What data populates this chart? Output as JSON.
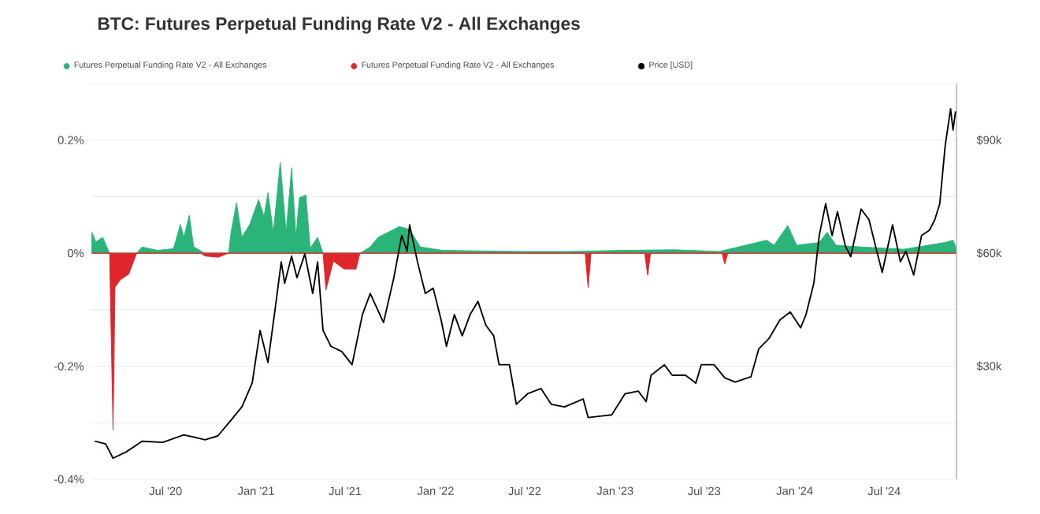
{
  "chart_data": {
    "type": "area",
    "title": "BTC: Futures Perpetual Funding Rate V2 - All Exchanges",
    "xlim": [
      "2020-02-01",
      "2024-11-25"
    ],
    "xticks": [
      {
        "value": "2020-07-01",
        "label": "Jul '20"
      },
      {
        "value": "2021-01-01",
        "label": "Jan '21"
      },
      {
        "value": "2021-07-01",
        "label": "Jul '21"
      },
      {
        "value": "2022-01-01",
        "label": "Jan '22"
      },
      {
        "value": "2022-07-01",
        "label": "Jul '22"
      },
      {
        "value": "2023-01-01",
        "label": "Jan '23"
      },
      {
        "value": "2023-07-01",
        "label": "Jul '23"
      },
      {
        "value": "2024-01-01",
        "label": "Jan '24"
      },
      {
        "value": "2024-07-01",
        "label": "Jul '24"
      }
    ],
    "ylim": [
      -0.4,
      0.3
    ],
    "yticks": [
      {
        "value": -0.4,
        "label": "-0.4%"
      },
      {
        "value": -0.3,
        "label": null
      },
      {
        "value": -0.2,
        "label": "-0.2%"
      },
      {
        "value": -0.1,
        "label": null
      },
      {
        "value": 0,
        "label": "0%"
      },
      {
        "value": 0.1,
        "label": null
      },
      {
        "value": 0.2,
        "label": "0.2%"
      },
      {
        "value": 0.3,
        "label": null
      }
    ],
    "y2lim": [
      0,
      105000
    ],
    "y2ticks": [
      {
        "value": 30000,
        "label": "$30k"
      },
      {
        "value": 60000,
        "label": "$60k"
      },
      {
        "value": 90000,
        "label": "$90k"
      }
    ],
    "grid": "y",
    "legend": "top",
    "series": [
      {
        "name": "Futures Perpetual Funding Rate V2 - All Exchanges",
        "color": "#2bb47a",
        "x": [
          "2020-02-02",
          "2020-02-10",
          "2020-02-24",
          "2020-03-09",
          "2020-03-16",
          "2020-04-17",
          "2020-05-03",
          "2020-05-14",
          "2020-06-15",
          "2020-07-17",
          "2020-07-31",
          "2020-08-07",
          "2020-08-18",
          "2020-08-27",
          "2020-09-19",
          "2020-10-16",
          "2020-11-06",
          "2020-11-11",
          "2020-11-22",
          "2020-12-03",
          "2020-12-19",
          "2021-01-06",
          "2021-01-17",
          "2021-01-25",
          "2021-02-05",
          "2021-02-19",
          "2021-03-03",
          "2021-03-14",
          "2021-03-23",
          "2021-03-30",
          "2021-04-12",
          "2021-04-21",
          "2021-05-06",
          "2021-05-17",
          "2021-07-31",
          "2021-08-21",
          "2021-09-06",
          "2021-10-19",
          "2021-11-09",
          "2021-12-01",
          "2022-01-15",
          "2022-04-01",
          "2022-07-01",
          "2022-10-01",
          "2023-01-15",
          "2023-05-01",
          "2023-08-01",
          "2023-11-05",
          "2023-11-20",
          "2023-12-18",
          "2024-01-05",
          "2024-02-20",
          "2024-03-07",
          "2024-03-25",
          "2024-05-15",
          "2024-08-10",
          "2024-11-02",
          "2024-11-18",
          "2024-11-24"
        ],
        "values": [
          0.037,
          0.02,
          0.028,
          0,
          0,
          0,
          0,
          0.011,
          0.005,
          0.008,
          0.051,
          0.028,
          0.067,
          0.011,
          0,
          0,
          0,
          0.037,
          0.089,
          0.028,
          0.051,
          0.095,
          0.065,
          0.107,
          0.037,
          0.161,
          0.037,
          0.151,
          0.028,
          0.098,
          0.103,
          0.009,
          0.028,
          0,
          0,
          0.011,
          0.028,
          0.047,
          0.042,
          0.011,
          0.005,
          0.004,
          0.003,
          0.003,
          0.005,
          0.006,
          0.003,
          0.023,
          0.014,
          0.049,
          0.014,
          0.019,
          0.037,
          0.014,
          0.011,
          0.007,
          0.019,
          0.023,
          0.01
        ]
      },
      {
        "name": "Futures Perpetual Funding Rate V2 - All Exchanges",
        "color": "#e0262b",
        "x": [
          "2020-02-02",
          "2020-03-09",
          "2020-03-16",
          "2020-03-20",
          "2020-03-31",
          "2020-04-17",
          "2020-05-03",
          "2020-09-10",
          "2020-09-19",
          "2020-10-16",
          "2020-11-06",
          "2021-05-17",
          "2021-05-23",
          "2021-06-07",
          "2021-06-29",
          "2021-07-23",
          "2021-07-31",
          "2022-11-01",
          "2022-11-07",
          "2022-11-13",
          "2023-03-02",
          "2023-03-08",
          "2023-03-14",
          "2023-08-06",
          "2023-08-12",
          "2023-08-18",
          "2024-11-24"
        ],
        "values": [
          0,
          0,
          -0.313,
          -0.06,
          -0.047,
          -0.037,
          0,
          0,
          -0.005,
          -0.007,
          0,
          0,
          -0.065,
          -0.014,
          -0.028,
          -0.028,
          0,
          0,
          -0.061,
          0,
          0,
          -0.039,
          0,
          0,
          -0.019,
          0,
          0
        ]
      },
      {
        "name": "Price [USD]",
        "color": "#000000",
        "type": "line",
        "axis": "y2",
        "x": [
          "2020-02-08",
          "2020-03-01",
          "2020-03-16",
          "2020-04-12",
          "2020-05-14",
          "2020-06-25",
          "2020-08-07",
          "2020-09-19",
          "2020-10-15",
          "2020-11-11",
          "2020-12-03",
          "2020-12-24",
          "2021-01-09",
          "2021-01-25",
          "2021-02-10",
          "2021-02-21",
          "2021-02-28",
          "2021-03-14",
          "2021-03-25",
          "2021-04-10",
          "2021-04-26",
          "2021-05-06",
          "2021-05-17",
          "2021-06-02",
          "2021-06-24",
          "2021-07-15",
          "2021-08-05",
          "2021-08-21",
          "2021-09-17",
          "2021-10-08",
          "2021-10-24",
          "2021-11-04",
          "2021-11-09",
          "2021-11-25",
          "2021-12-11",
          "2021-12-27",
          "2022-01-12",
          "2022-01-23",
          "2022-02-08",
          "2022-02-24",
          "2022-03-12",
          "2022-03-28",
          "2022-04-13",
          "2022-04-29",
          "2022-05-10",
          "2022-05-31",
          "2022-06-14",
          "2022-07-07",
          "2022-08-03",
          "2022-08-24",
          "2022-09-20",
          "2022-10-28",
          "2022-11-07",
          "2022-12-25",
          "2023-01-21",
          "2023-02-17",
          "2023-03-05",
          "2023-03-15",
          "2023-04-11",
          "2023-04-27",
          "2023-05-24",
          "2023-06-14",
          "2023-06-25",
          "2023-07-21",
          "2023-08-12",
          "2023-09-02",
          "2023-10-04",
          "2023-10-20",
          "2023-11-10",
          "2023-12-02",
          "2023-12-23",
          "2024-01-13",
          "2024-01-24",
          "2024-02-09",
          "2024-02-20",
          "2024-03-04",
          "2024-03-17",
          "2024-03-28",
          "2024-04-13",
          "2024-04-24",
          "2024-05-15",
          "2024-05-31",
          "2024-06-16",
          "2024-06-27",
          "2024-07-18",
          "2024-08-03",
          "2024-08-14",
          "2024-08-30",
          "2024-09-15",
          "2024-10-01",
          "2024-10-12",
          "2024-10-22",
          "2024-11-02",
          "2024-11-13",
          "2024-11-18",
          "2024-11-23"
        ],
        "values": [
          10100,
          9400,
          5600,
          7300,
          10100,
          9800,
          11800,
          10500,
          11500,
          15700,
          19200,
          25600,
          39500,
          31000,
          46600,
          57700,
          52000,
          59200,
          53500,
          59800,
          49300,
          57700,
          39500,
          35300,
          33900,
          30400,
          43700,
          49300,
          41600,
          53500,
          64700,
          60500,
          67500,
          57700,
          49300,
          50700,
          42300,
          35300,
          43700,
          38100,
          43700,
          47200,
          40900,
          38100,
          30400,
          30400,
          19900,
          22700,
          24100,
          19900,
          19200,
          21300,
          16400,
          17100,
          22700,
          23400,
          20600,
          27600,
          30400,
          27600,
          27600,
          25500,
          30400,
          30400,
          26900,
          25800,
          27200,
          34600,
          37400,
          42300,
          44400,
          40200,
          43700,
          52100,
          64700,
          73100,
          64700,
          71000,
          61900,
          59100,
          71700,
          68900,
          60500,
          54900,
          67500,
          57700,
          60500,
          54200,
          64700,
          66100,
          68900,
          73100,
          88500,
          98300,
          92700,
          97600
        ]
      }
    ]
  }
}
